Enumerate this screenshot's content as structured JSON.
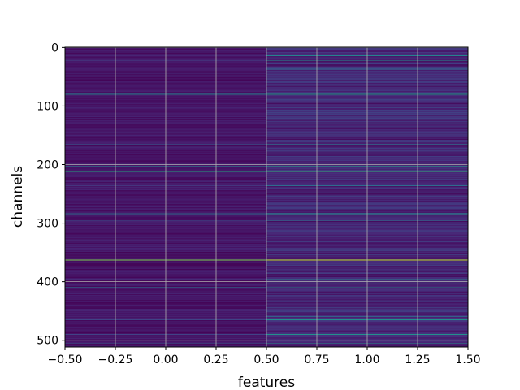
{
  "chart_data": {
    "type": "heatmap",
    "xlabel": "features",
    "ylabel": "channels",
    "x_ticks": [
      "−0.50",
      "−0.25",
      "0.00",
      "0.25",
      "0.50",
      "0.75",
      "1.00",
      "1.25",
      "1.50"
    ],
    "x_tick_values": [
      -0.5,
      -0.25,
      0.0,
      0.25,
      0.5,
      0.75,
      1.0,
      1.25,
      1.5
    ],
    "y_ticks": [
      "0",
      "100",
      "200",
      "300",
      "400",
      "500"
    ],
    "y_tick_values": [
      0,
      100,
      200,
      300,
      400,
      500
    ],
    "xlim": [
      -0.5,
      1.5
    ],
    "ylim": [
      511.5,
      -0.5
    ],
    "rows": 512,
    "columns": [
      0,
      1
    ],
    "colormap": "viridis",
    "grid": true,
    "grid_color": "#b0b0b0",
    "highlighted_rows": [
      {
        "channel": 14,
        "values": [
          0.1,
          0.45
        ]
      },
      {
        "channel": 22,
        "values": [
          0.2,
          0.5
        ]
      },
      {
        "channel": 37,
        "values": [
          0.1,
          0.35
        ]
      },
      {
        "channel": 80,
        "values": [
          0.45,
          0.55
        ]
      },
      {
        "channel": 86,
        "values": [
          0.1,
          0.45
        ]
      },
      {
        "channel": 160,
        "values": [
          0.35,
          0.35
        ]
      },
      {
        "channel": 166,
        "values": [
          0.3,
          0.45
        ]
      },
      {
        "channel": 182,
        "values": [
          0.2,
          0.4
        ]
      },
      {
        "channel": 203,
        "values": [
          0.45,
          0.55
        ]
      },
      {
        "channel": 212,
        "values": [
          0.6,
          0.65
        ]
      },
      {
        "channel": 236,
        "values": [
          0.15,
          0.35
        ]
      },
      {
        "channel": 284,
        "values": [
          0.35,
          0.5
        ]
      },
      {
        "channel": 296,
        "values": [
          0.25,
          0.4
        ]
      },
      {
        "channel": 330,
        "values": [
          0.2,
          0.35
        ]
      },
      {
        "channel": 360,
        "values": [
          0.95,
          0.95
        ]
      },
      {
        "channel": 363,
        "values": [
          0.8,
          0.9
        ]
      },
      {
        "channel": 366,
        "values": [
          0.3,
          0.85
        ]
      },
      {
        "channel": 396,
        "values": [
          0.15,
          0.45
        ]
      },
      {
        "channel": 410,
        "values": [
          0.4,
          0.45
        ]
      },
      {
        "channel": 460,
        "values": [
          0.1,
          0.45
        ]
      },
      {
        "channel": 465,
        "values": [
          0.2,
          0.5
        ]
      },
      {
        "channel": 490,
        "values": [
          0.2,
          0.5
        ]
      },
      {
        "channel": 505,
        "values": [
          0.3,
          0.5
        ]
      }
    ]
  }
}
